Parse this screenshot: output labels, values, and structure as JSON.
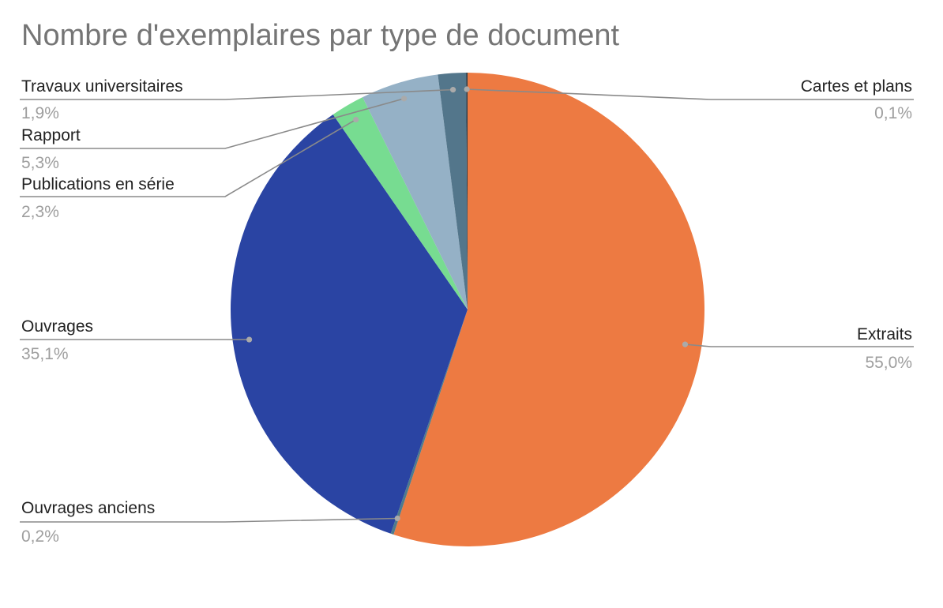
{
  "chart_data": {
    "type": "pie",
    "title": "Nombre d'exemplaires par type de document",
    "slices": [
      {
        "label": "Extraits",
        "value": 55.0,
        "display": "55,0%",
        "color": "#ed7a42"
      },
      {
        "label": "Ouvrages anciens",
        "value": 0.2,
        "display": "0,2%",
        "color": "#4e7b8c"
      },
      {
        "label": "Ouvrages",
        "value": 35.1,
        "display": "35,1%",
        "color": "#2a44a3"
      },
      {
        "label": "Publications en série",
        "value": 2.3,
        "display": "2,3%",
        "color": "#77dc91"
      },
      {
        "label": "Rapport",
        "value": 5.3,
        "display": "5,3%",
        "color": "#95b1c6"
      },
      {
        "label": "Travaux universitaires",
        "value": 1.9,
        "display": "1,9%",
        "color": "#53768b"
      },
      {
        "label": "Cartes et plans",
        "value": 0.1,
        "display": "0,1%",
        "color": "#2b3e4c"
      }
    ]
  }
}
